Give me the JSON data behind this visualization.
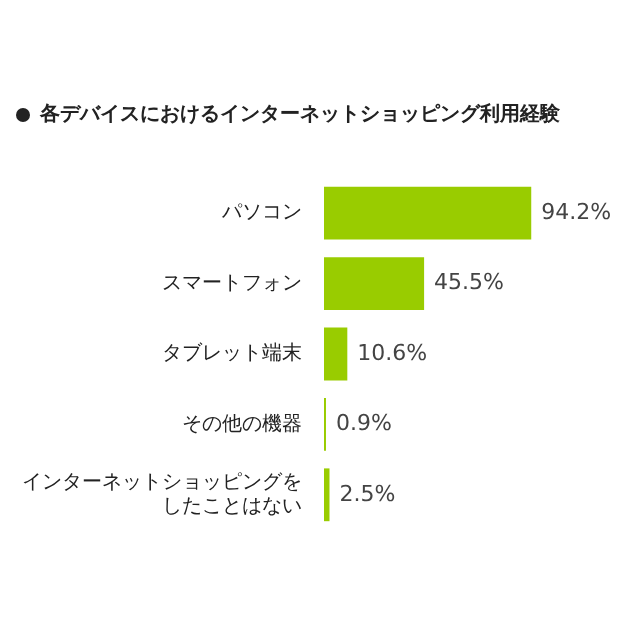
{
  "chart_data": {
    "type": "bar",
    "orientation": "horizontal",
    "title": "各デバイスにおけるインターネットショッピング利用経験",
    "categories": [
      "パソコン",
      "スマートフォン",
      "タブレット端末",
      "その他の機器",
      "インターネットショッピングをしたことはない"
    ],
    "values": [
      94.2,
      45.5,
      10.6,
      0.9,
      2.5
    ],
    "value_labels": [
      "94.2%",
      "45.5%",
      "10.6%",
      "0.9%",
      "2.5%"
    ],
    "color": "#99cc00",
    "legend": false
  }
}
